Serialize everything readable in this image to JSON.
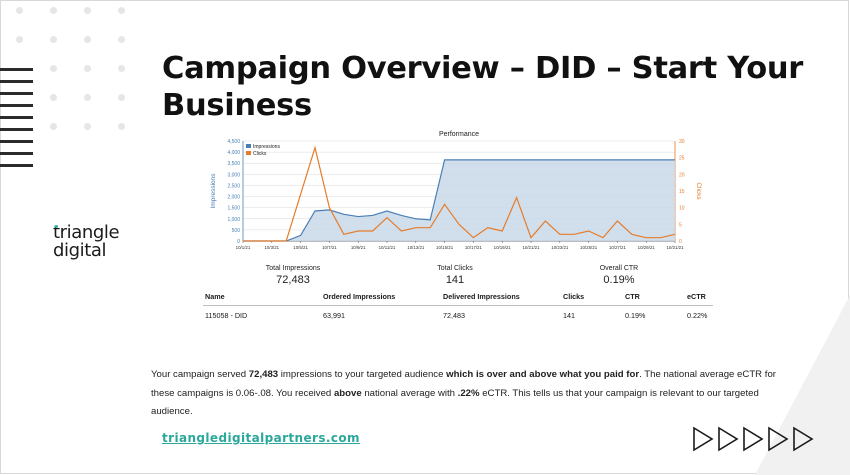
{
  "slide": {
    "title": "Campaign Overview – DID – Start Your Business",
    "logo": {
      "line1": "triangle",
      "line2": "digital"
    },
    "link": "triangledigitalpartners.com",
    "colors": {
      "accent": "#2ba89b",
      "impressions": "#4a7fb5",
      "clicks": "#e57c2b"
    }
  },
  "chart_data": {
    "type": "line",
    "title": "Performance",
    "x": [
      "10/1/21",
      "10/2/21",
      "10/3/21",
      "10/4/21",
      "10/5/21",
      "10/6/21",
      "10/7/21",
      "10/8/21",
      "10/9/21",
      "10/10/21",
      "10/11/21",
      "10/12/21",
      "10/13/21",
      "10/14/21",
      "10/15/21",
      "10/16/21",
      "10/17/21",
      "10/18/21",
      "10/19/21",
      "10/20/21",
      "10/21/21",
      "10/22/21",
      "10/23/21",
      "10/24/21",
      "10/25/21",
      "10/26/21",
      "10/27/21",
      "10/28/21",
      "10/29/21",
      "10/30/21",
      "10/31/21"
    ],
    "x_tick_labels": [
      "10/1/21",
      "10/3/21",
      "10/5/21",
      "10/7/21",
      "10/9/21",
      "10/11/21",
      "10/13/21",
      "10/15/21",
      "10/17/21",
      "10/19/21",
      "10/21/21",
      "10/23/21",
      "10/25/21",
      "10/27/21",
      "10/29/21",
      "10/31/21"
    ],
    "series": [
      {
        "name": "Impressions",
        "axis": "left",
        "values": [
          0,
          0,
          0,
          0,
          250,
          1350,
          1400,
          1200,
          1100,
          1150,
          1350,
          1150,
          1000,
          950,
          3650,
          3650,
          3650,
          3650,
          3650,
          3650,
          3650,
          3650,
          3650,
          3650,
          3650,
          3650,
          3650,
          3650,
          3650,
          3650,
          3650
        ]
      },
      {
        "name": "Clicks",
        "axis": "right",
        "values": [
          0,
          0,
          0,
          0,
          14,
          28,
          10,
          2,
          3,
          3,
          7,
          3,
          4,
          4,
          11,
          5,
          1,
          4,
          3,
          13,
          1,
          6,
          2,
          2,
          3,
          1,
          6,
          2,
          1,
          1,
          2
        ]
      }
    ],
    "ylabel": "Impressions",
    "y2label": "Clicks",
    "ylim": [
      0,
      4500
    ],
    "y_ticks": [
      "0",
      "500",
      "1,000",
      "1,500",
      "2,000",
      "2,500",
      "3,000",
      "3,500",
      "4,000",
      "4,500"
    ],
    "y2lim": [
      0,
      30
    ],
    "y2_ticks": [
      "0",
      "5",
      "10",
      "15",
      "20",
      "25",
      "30"
    ],
    "legend": "top-left",
    "grid": true
  },
  "stats": [
    {
      "label": "Total Impressions",
      "value": "72,483"
    },
    {
      "label": "Total Clicks",
      "value": "141"
    },
    {
      "label": "Overall CTR",
      "value": "0.19%"
    }
  ],
  "table": {
    "headers": [
      "Name",
      "Ordered Impressions",
      "Delivered Impressions",
      "Clicks",
      "CTR",
      "eCTR"
    ],
    "rows": [
      [
        "115058 - DID",
        "63,991",
        "72,483",
        "141",
        "0.19%",
        "0.22%"
      ]
    ]
  },
  "paragraph": {
    "p1": "Your campaign served ",
    "b1": "72,483",
    "p2": " impressions to your targeted audience ",
    "b2": "which is over and above what you paid for",
    "p3": ". The national average eCTR for these campaigns is 0.06-.08. You received ",
    "b3": "above",
    "p4": " national average with ",
    "b4": ".22%",
    "p5": " eCTR. This tells us that your campaign is relevant to our targeted audience."
  }
}
